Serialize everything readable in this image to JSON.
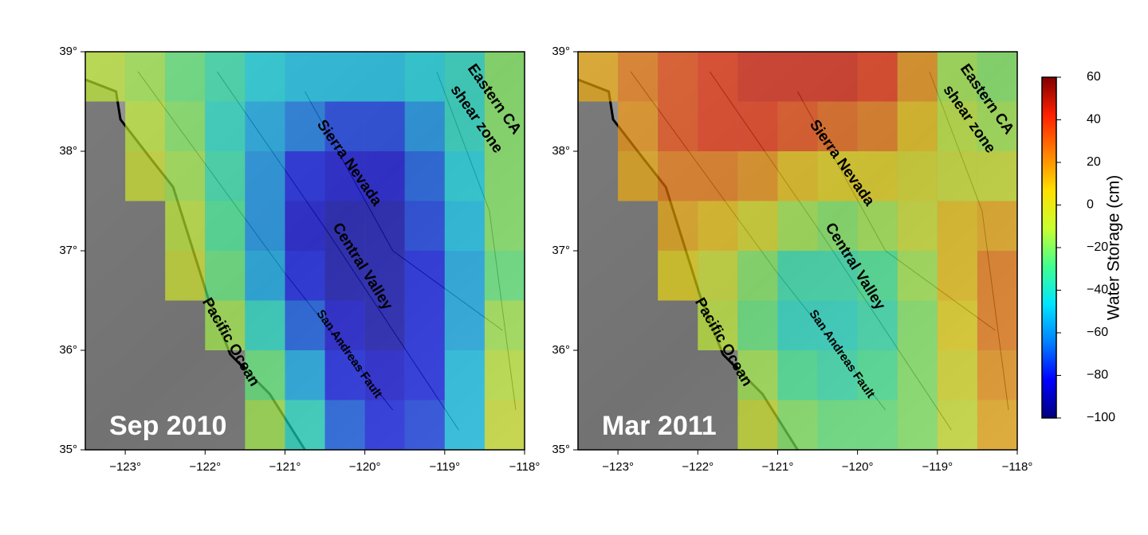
{
  "maps": [
    {
      "title": "Sep 2010",
      "xlim": [
        -123.5,
        -118
      ],
      "ylim": [
        35,
        39
      ],
      "xticks": [
        {
          "value": -123,
          "label": "−123°"
        },
        {
          "value": -122,
          "label": "−122°"
        },
        {
          "value": -121,
          "label": "−121°"
        },
        {
          "value": -120,
          "label": "−120°"
        },
        {
          "value": -119,
          "label": "−119°"
        },
        {
          "value": -118,
          "label": "−118°"
        }
      ],
      "yticks": [
        {
          "value": 35,
          "label": "35°"
        },
        {
          "value": 36,
          "label": "36°"
        },
        {
          "value": 37,
          "label": "37°"
        },
        {
          "value": 38,
          "label": "38°"
        },
        {
          "value": 39,
          "label": "39°"
        }
      ],
      "labels": [
        "Sierra Nevada",
        "Central Valley",
        "San Andreas Fault",
        "Pacific Ocean",
        "Eastern CA",
        "shear zone"
      ],
      "cells": [
        [
          -10,
          -15,
          -25,
          -35,
          -45,
          -50,
          -50,
          -50,
          -45,
          -40,
          -20
        ],
        [
          null,
          -10,
          -20,
          -40,
          -55,
          -65,
          -75,
          -75,
          -60,
          -40,
          -20
        ],
        [
          null,
          -5,
          -15,
          -35,
          -60,
          -80,
          -85,
          -85,
          -70,
          -45,
          -20
        ],
        [
          null,
          null,
          -10,
          -30,
          -60,
          -85,
          -90,
          -90,
          -75,
          -50,
          -20
        ],
        [
          null,
          null,
          -5,
          -25,
          -55,
          -80,
          -90,
          -90,
          -80,
          -55,
          -25
        ],
        [
          null,
          null,
          null,
          -15,
          -40,
          -70,
          -85,
          -90,
          -80,
          -55,
          -15
        ],
        [
          null,
          null,
          null,
          null,
          -25,
          -55,
          -80,
          -85,
          -80,
          -50,
          -10
        ],
        [
          null,
          null,
          null,
          null,
          -15,
          -40,
          -70,
          -80,
          -75,
          -50,
          -5
        ]
      ]
    },
    {
      "title": "Mar 2011",
      "xlim": [
        -123.5,
        -118
      ],
      "ylim": [
        35,
        39
      ],
      "xticks": [
        {
          "value": -123,
          "label": "−123°"
        },
        {
          "value": -122,
          "label": "−122°"
        },
        {
          "value": -121,
          "label": "−121°"
        },
        {
          "value": -120,
          "label": "−120°"
        },
        {
          "value": -119,
          "label": "−119°"
        },
        {
          "value": -118,
          "label": "−118°"
        }
      ],
      "yticks": [
        {
          "value": 35,
          "label": "35°"
        },
        {
          "value": 36,
          "label": "36°"
        },
        {
          "value": 37,
          "label": "37°"
        },
        {
          "value": 38,
          "label": "38°"
        },
        {
          "value": 39,
          "label": "39°"
        }
      ],
      "labels": [
        "Sierra Nevada",
        "Central Valley",
        "San Andreas Fault",
        "Pacific Ocean",
        "Eastern CA",
        "shear zone"
      ],
      "cells": [
        [
          15,
          25,
          35,
          40,
          45,
          45,
          45,
          40,
          20,
          -15,
          -20
        ],
        [
          null,
          20,
          35,
          40,
          40,
          35,
          30,
          25,
          10,
          -10,
          -15
        ],
        [
          null,
          15,
          25,
          25,
          20,
          10,
          5,
          5,
          0,
          -5,
          -5
        ],
        [
          null,
          null,
          15,
          10,
          0,
          -15,
          -20,
          -15,
          -5,
          10,
          15
        ],
        [
          null,
          null,
          5,
          -5,
          -20,
          -35,
          -35,
          -30,
          -15,
          10,
          25
        ],
        [
          null,
          null,
          null,
          -10,
          -25,
          -40,
          -40,
          -35,
          -20,
          5,
          25
        ],
        [
          null,
          null,
          null,
          null,
          -15,
          -30,
          -35,
          -30,
          -20,
          0,
          20
        ],
        [
          null,
          null,
          null,
          null,
          -5,
          -20,
          -25,
          -25,
          -20,
          -5,
          15
        ]
      ]
    }
  ],
  "colorbar": {
    "label": "Water Storage (cm)",
    "lim": [
      -100,
      60
    ],
    "ticks": [
      60,
      40,
      20,
      0,
      {
        "value": -20,
        "label": "−20"
      },
      {
        "value": -40,
        "label": "−40"
      },
      {
        "value": -60,
        "label": "−60"
      },
      {
        "value": -80,
        "label": "−80"
      },
      {
        "value": -100,
        "label": "−100"
      }
    ],
    "colormap": [
      "#00007f",
      "#0000ff",
      "#0080ff",
      "#00e5ff",
      "#40ff90",
      "#c8ff30",
      "#ffe000",
      "#ff8000",
      "#ff2000",
      "#7f0000"
    ]
  }
}
